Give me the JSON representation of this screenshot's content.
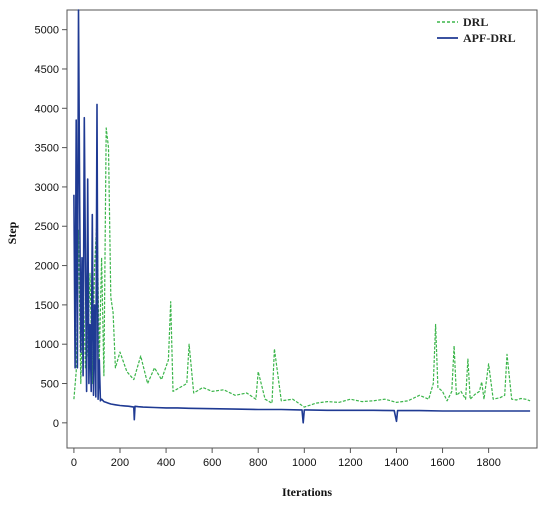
{
  "chart_data": {
    "type": "line",
    "xlabel": "Iterations",
    "ylabel": "Step",
    "xlim": [
      -30,
      2010
    ],
    "ylim": [
      -320,
      5250
    ],
    "xticks": [
      0,
      200,
      400,
      600,
      800,
      1000,
      1200,
      1400,
      1600,
      1800
    ],
    "yticks": [
      0,
      500,
      1000,
      1500,
      2000,
      2500,
      3000,
      3500,
      4000,
      4500,
      5000
    ],
    "grid": false,
    "legend_position": "top-right",
    "series": [
      {
        "name": "DRL",
        "color": "#3bb54a",
        "style": "dashed",
        "x": [
          0,
          10,
          20,
          30,
          40,
          50,
          60,
          70,
          80,
          90,
          100,
          110,
          120,
          130,
          140,
          150,
          160,
          170,
          180,
          200,
          230,
          260,
          290,
          320,
          350,
          380,
          410,
          420,
          430,
          460,
          490,
          500,
          520,
          560,
          600,
          650,
          700,
          750,
          790,
          800,
          830,
          860,
          870,
          900,
          950,
          1000,
          1050,
          1100,
          1150,
          1200,
          1250,
          1300,
          1350,
          1400,
          1450,
          1500,
          1540,
          1560,
          1570,
          1580,
          1600,
          1620,
          1640,
          1650,
          1660,
          1680,
          1700,
          1710,
          1720,
          1740,
          1760,
          1770,
          1780,
          1800,
          1820,
          1850,
          1870,
          1880,
          1900,
          1920,
          1940,
          1960,
          1980
        ],
        "values": [
          300,
          650,
          2450,
          500,
          1800,
          700,
          900,
          1900,
          500,
          2000,
          2600,
          800,
          2100,
          600,
          3750,
          3500,
          1600,
          1400,
          700,
          900,
          650,
          550,
          850,
          500,
          700,
          550,
          800,
          1540,
          400,
          450,
          500,
          1000,
          380,
          450,
          400,
          420,
          350,
          380,
          300,
          650,
          300,
          250,
          940,
          280,
          300,
          200,
          250,
          270,
          260,
          300,
          270,
          280,
          300,
          260,
          280,
          350,
          300,
          500,
          1250,
          450,
          400,
          280,
          400,
          980,
          350,
          400,
          300,
          810,
          300,
          360,
          400,
          520,
          300,
          750,
          300,
          320,
          350,
          870,
          300,
          290,
          310,
          300,
          280
        ]
      },
      {
        "name": "APF-DRL",
        "color": "#1f3a93",
        "style": "solid",
        "x": [
          0,
          5,
          10,
          15,
          20,
          25,
          30,
          35,
          40,
          45,
          50,
          55,
          60,
          65,
          70,
          75,
          80,
          85,
          90,
          95,
          100,
          105,
          110,
          115,
          120,
          130,
          140,
          150,
          160,
          180,
          200,
          220,
          240,
          260,
          262,
          265,
          280,
          300,
          350,
          400,
          450,
          500,
          600,
          700,
          800,
          900,
          980,
          990,
          995,
          1000,
          1010,
          1100,
          1200,
          1300,
          1390,
          1400,
          1405,
          1410,
          1500,
          1600,
          1700,
          1800,
          1900,
          1980
        ],
        "values": [
          2900,
          700,
          3850,
          700,
          5250,
          2800,
          900,
          2100,
          600,
          3880,
          2100,
          400,
          3100,
          500,
          1250,
          400,
          2650,
          350,
          1500,
          330,
          4050,
          300,
          800,
          280,
          300,
          270,
          260,
          250,
          240,
          230,
          220,
          215,
          210,
          200,
          40,
          210,
          205,
          200,
          195,
          190,
          190,
          185,
          180,
          175,
          170,
          170,
          165,
          165,
          0,
          165,
          165,
          160,
          160,
          160,
          155,
          20,
          155,
          155,
          155,
          150,
          150,
          150,
          150,
          150
        ]
      }
    ]
  }
}
